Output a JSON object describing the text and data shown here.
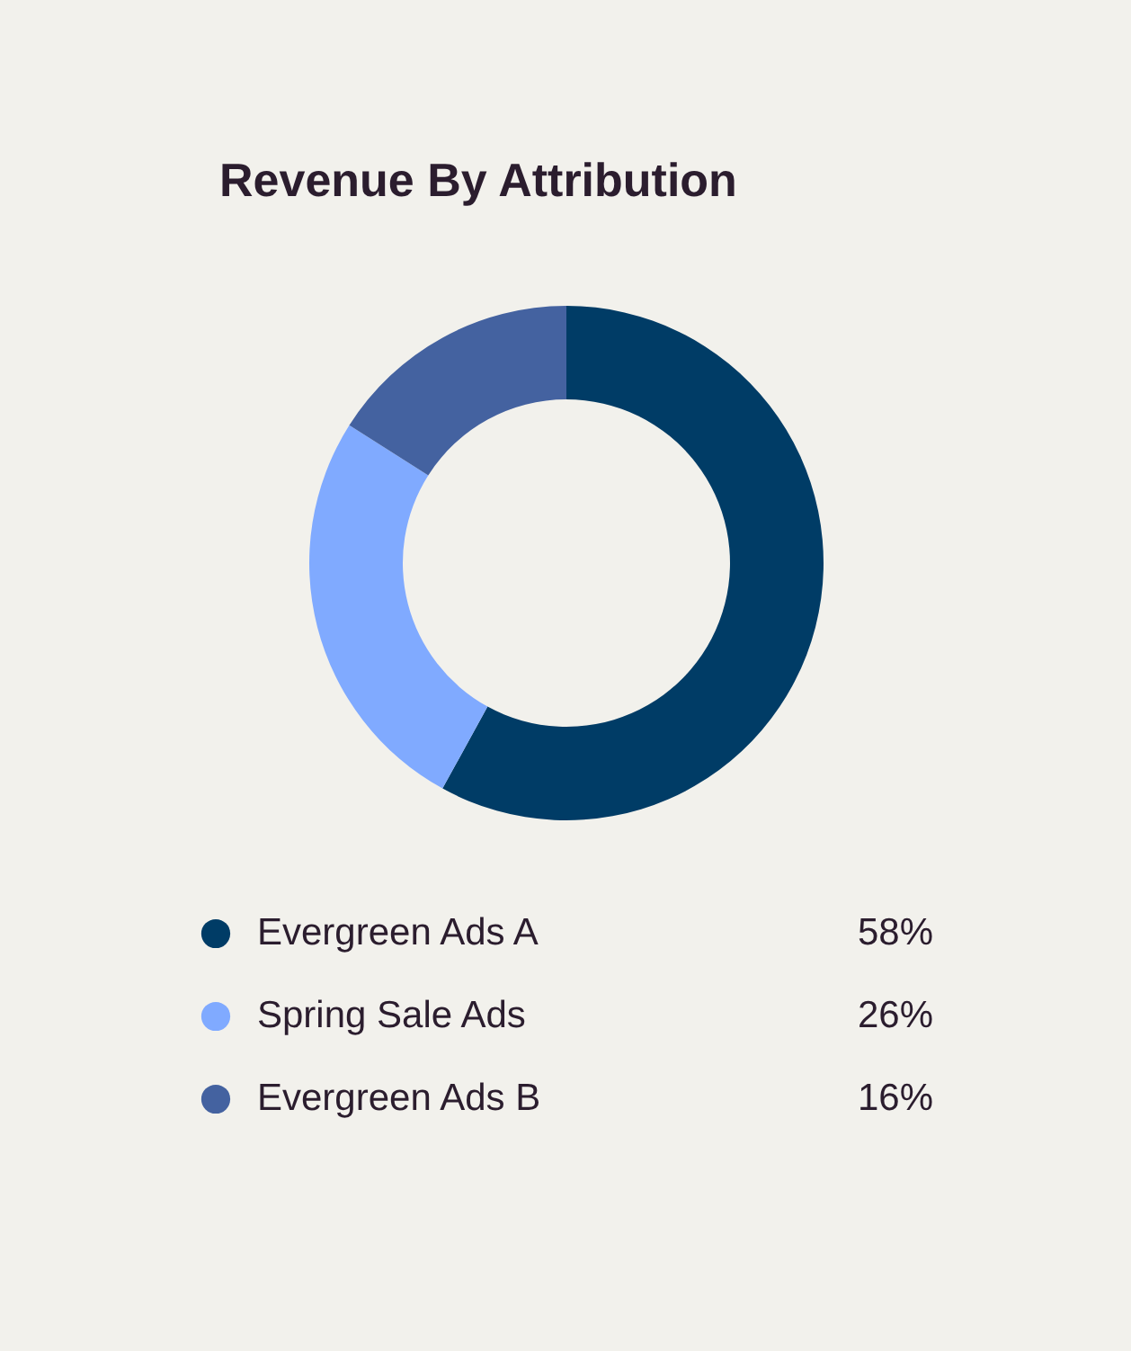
{
  "chart_data": {
    "type": "donut",
    "title": "Revenue By Attribution",
    "categories": [
      "Evergreen Ads A",
      "Spring Sale Ads",
      "Evergreen Ads B"
    ],
    "values": [
      58,
      26,
      16
    ],
    "colors": [
      "#003c66",
      "#80aaff",
      "#4462a0"
    ],
    "value_labels": [
      "58%",
      "26%",
      "16%"
    ],
    "legend": "bottom"
  }
}
